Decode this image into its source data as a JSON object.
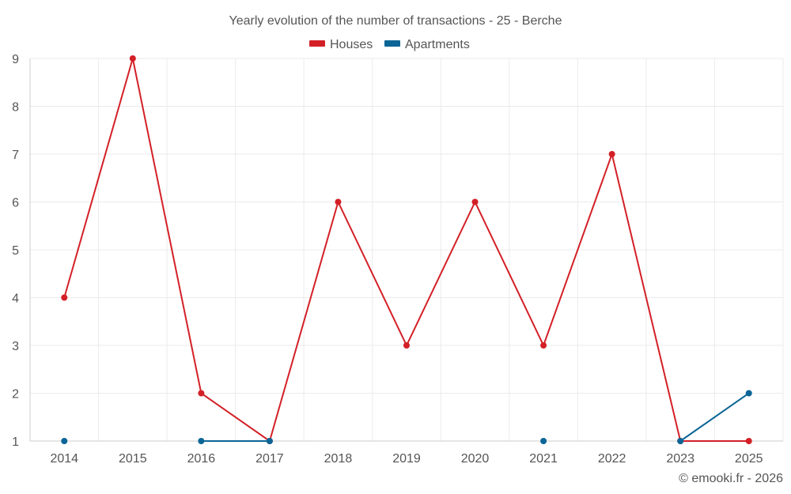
{
  "chart_data": {
    "type": "line",
    "title": "Yearly evolution of the number of transactions - 25 - Berche",
    "categories": [
      "2014",
      "2015",
      "2016",
      "2017",
      "2018",
      "2019",
      "2020",
      "2021",
      "2022",
      "2023",
      "2025"
    ],
    "ylim": [
      1,
      9
    ],
    "yticks": [
      1,
      2,
      3,
      4,
      5,
      6,
      7,
      8,
      9
    ],
    "grid": true,
    "legend_position": "top-center",
    "series": [
      {
        "name": "Houses",
        "color": "#d32027",
        "values": [
          4,
          9,
          2,
          1,
          6,
          3,
          6,
          3,
          7,
          1,
          1
        ]
      },
      {
        "name": "Apartments",
        "color": "#0b6596",
        "values": [
          1,
          null,
          1,
          1,
          null,
          null,
          null,
          1,
          null,
          1,
          2
        ]
      }
    ]
  },
  "footer": {
    "credit": "© emooki.fr - 2026"
  }
}
